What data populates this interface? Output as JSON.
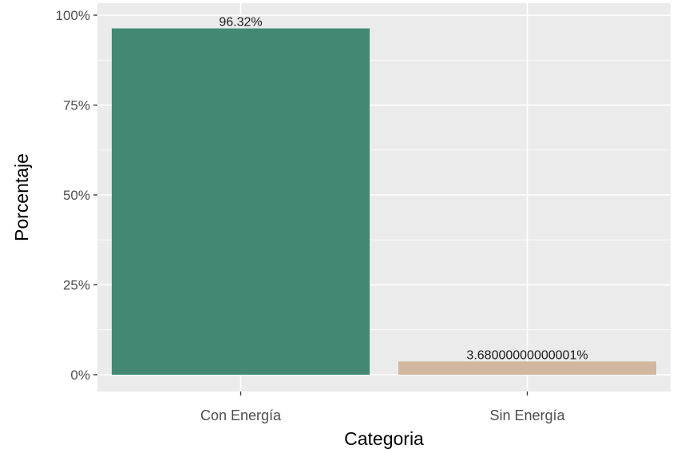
{
  "chart_data": {
    "type": "bar",
    "categories": [
      "Con Energía",
      "Sin Energía"
    ],
    "values": [
      96.32,
      3.68
    ],
    "data_labels": [
      "96.32%",
      "3.68000000000001%"
    ],
    "bar_colors": [
      "#438872",
      "#d1b79f"
    ],
    "xlabel": "Categoria",
    "ylabel": "Porcentaje",
    "ylim": [
      0,
      100
    ],
    "y_ticks": [
      0,
      25,
      50,
      75,
      100
    ],
    "y_tick_labels": [
      "0%",
      "25%",
      "50%",
      "75%",
      "100%"
    ],
    "grid": true,
    "legend": "none",
    "panel_background": "#ebebeb",
    "grid_color": "#ffffff",
    "axis_text_color": "#4d4d4d",
    "title_color": "#000000"
  }
}
